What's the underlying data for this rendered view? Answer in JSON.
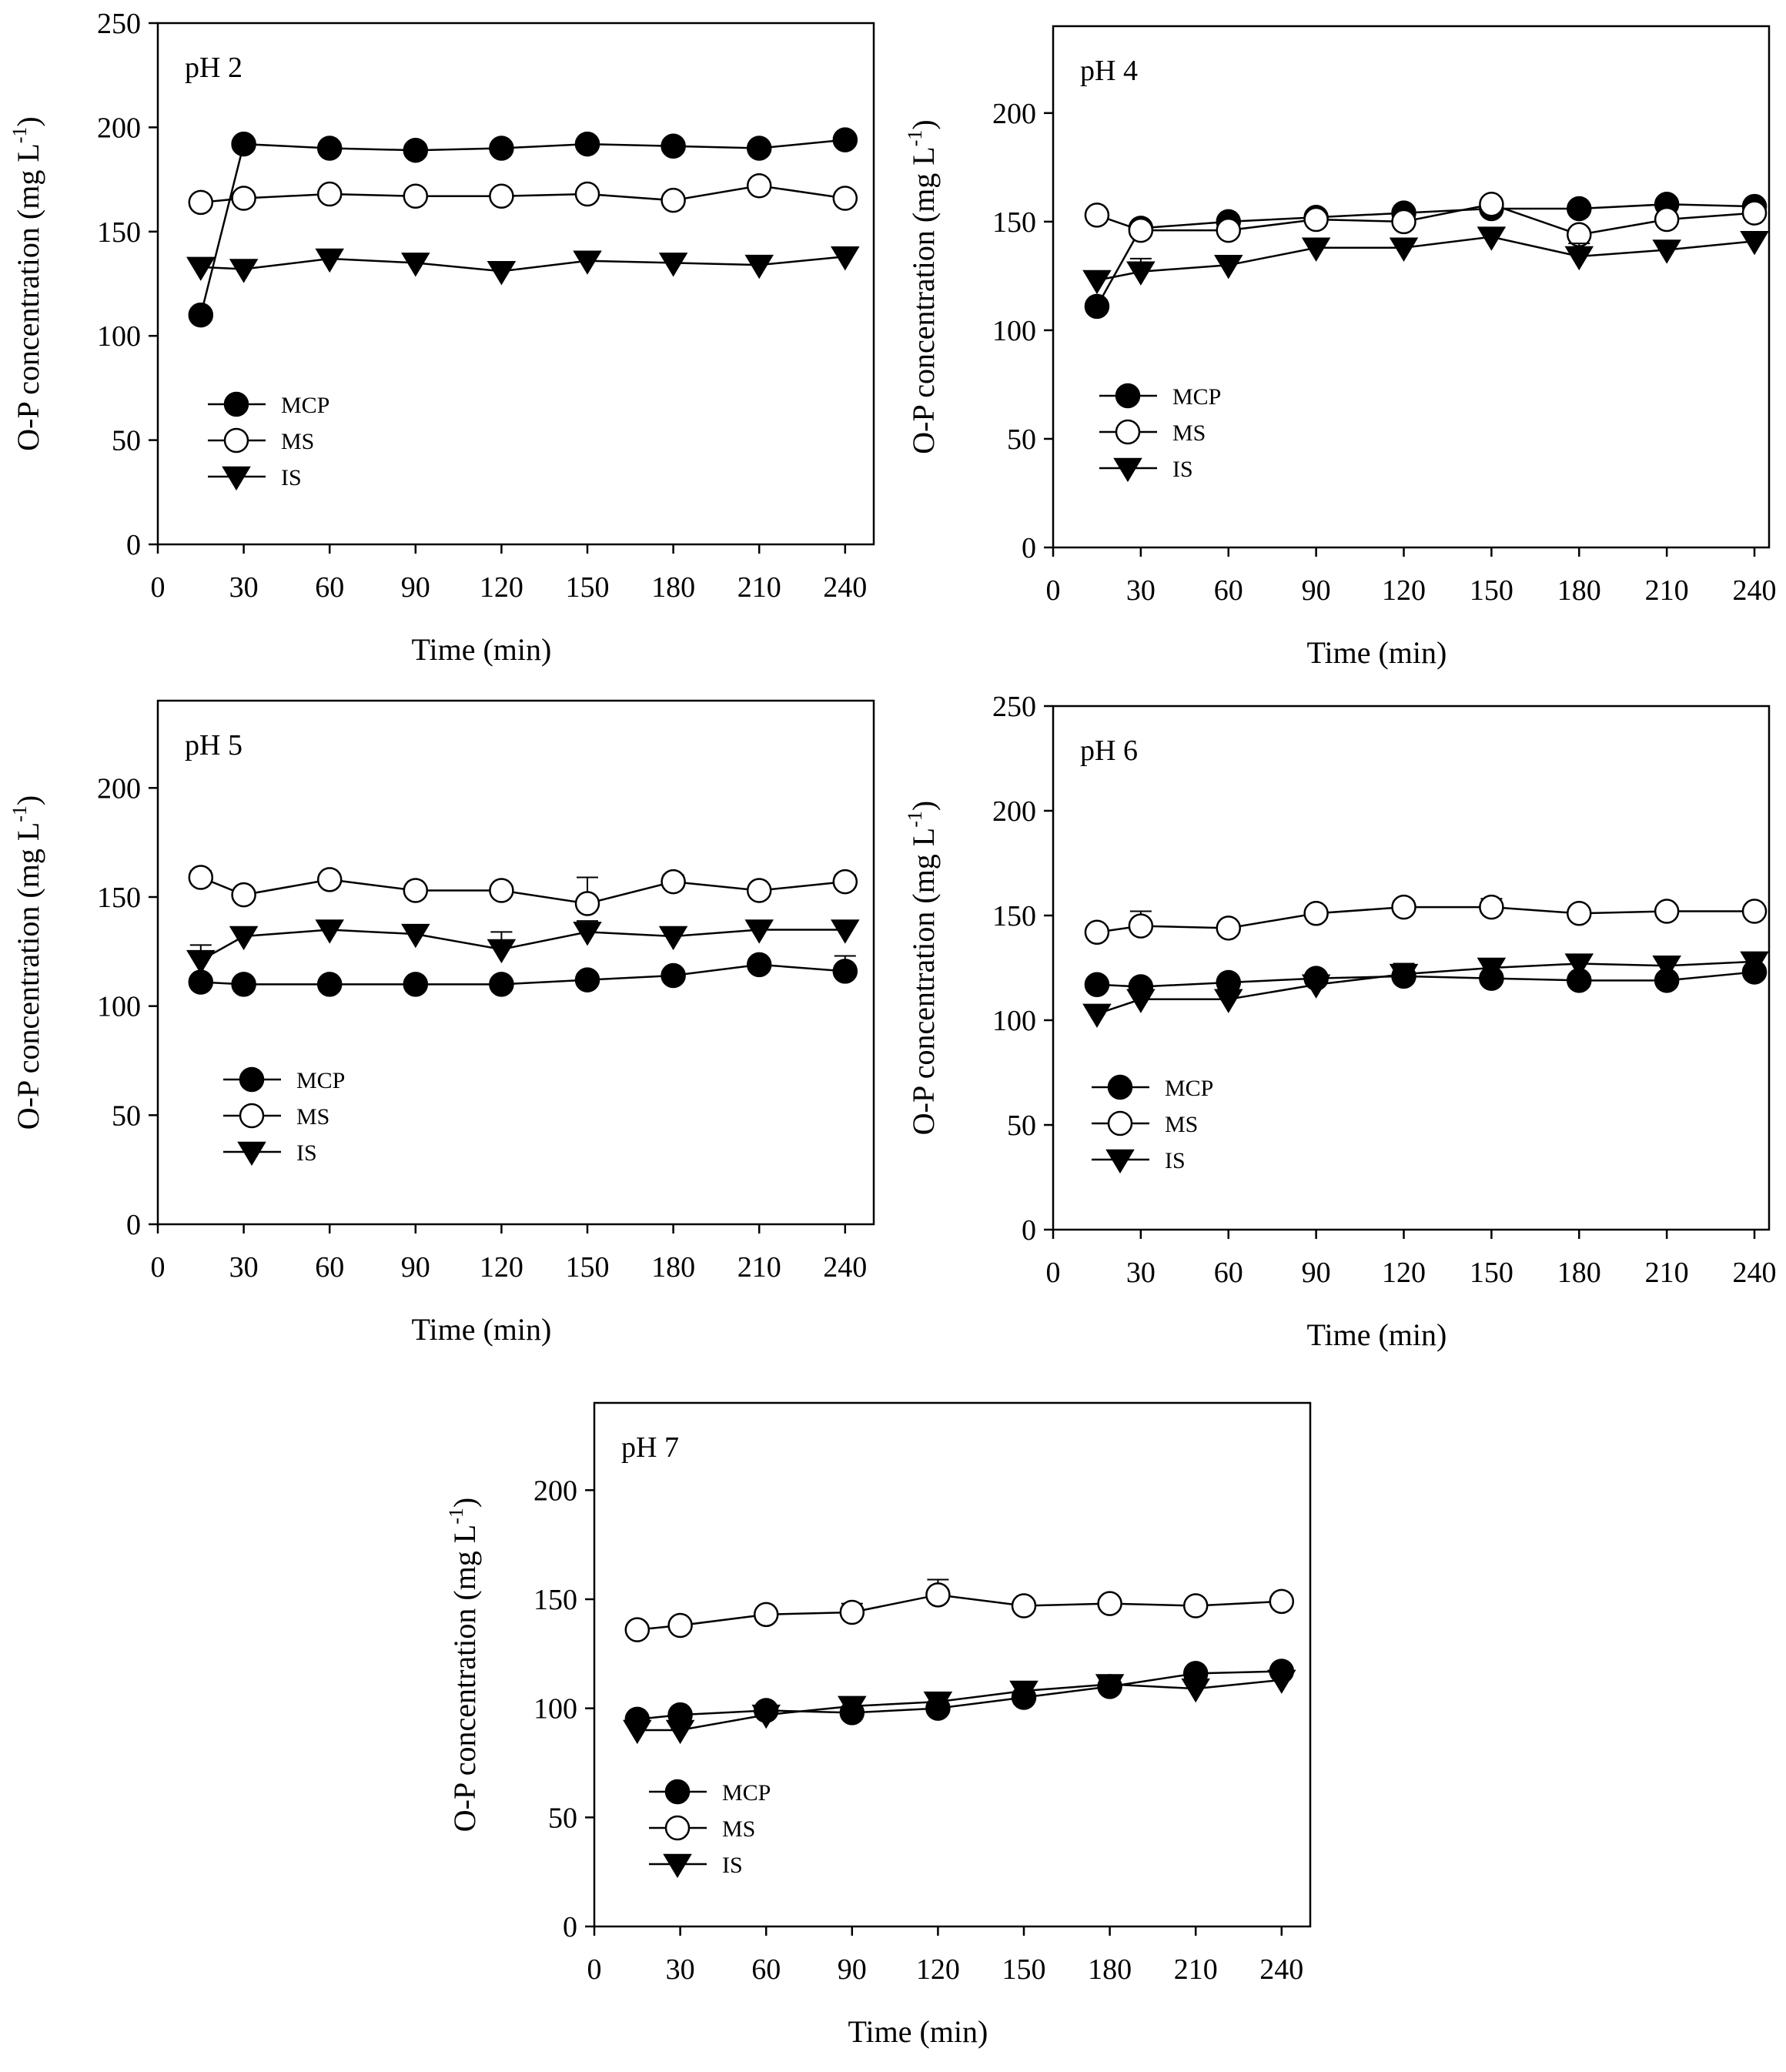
{
  "chart_data": [
    {
      "type": "line",
      "panel_label": "pH 2",
      "xlabel": "Time (min)",
      "ylabel": "O-P concentration (mg L-1)",
      "ylabel_main": "O-P concentration (mg L",
      "ylabel_sup": "-1",
      "ylabel_close": ")",
      "xlim": [
        0,
        250
      ],
      "ylim": [
        0,
        250
      ],
      "xticks": [
        0,
        30,
        60,
        90,
        120,
        150,
        180,
        210,
        240
      ],
      "yticks": [
        0,
        50,
        100,
        150,
        200,
        250
      ],
      "x": [
        15,
        30,
        60,
        90,
        120,
        150,
        180,
        210,
        240
      ],
      "series": [
        {
          "name": "MCP",
          "marker": "filled-circle",
          "values": [
            110,
            192,
            190,
            189,
            190,
            192,
            191,
            190,
            194
          ],
          "errors": [
            0,
            0,
            0,
            0,
            0,
            0,
            0,
            0,
            0
          ]
        },
        {
          "name": "MS",
          "marker": "open-circle",
          "values": [
            164,
            166,
            168,
            167,
            167,
            168,
            165,
            172,
            166
          ],
          "errors": [
            0,
            0,
            0,
            0,
            0,
            0,
            0,
            0,
            0
          ]
        },
        {
          "name": "IS",
          "marker": "filled-triangle-down",
          "values": [
            133,
            132,
            137,
            135,
            131,
            136,
            135,
            134,
            138
          ],
          "errors": [
            0,
            0,
            0,
            0,
            0,
            0,
            0,
            0,
            4
          ]
        }
      ]
    },
    {
      "type": "line",
      "panel_label": "pH 4",
      "xlabel": "Time (min)",
      "ylabel": "O-P concentration (mg L-1)",
      "ylabel_main": "O-P concentration (mg L",
      "ylabel_sup": "-1",
      "ylabel_close": ")",
      "xlim": [
        0,
        245
      ],
      "ylim": [
        0,
        240
      ],
      "xticks": [
        0,
        30,
        60,
        90,
        120,
        150,
        180,
        210,
        240
      ],
      "yticks": [
        0,
        50,
        100,
        150,
        200
      ],
      "x": [
        15,
        30,
        60,
        90,
        120,
        150,
        180,
        210,
        240
      ],
      "series": [
        {
          "name": "MCP",
          "marker": "filled-circle",
          "values": [
            111,
            147,
            150,
            152,
            154,
            156,
            156,
            158,
            157
          ],
          "errors": [
            0,
            0,
            0,
            0,
            0,
            0,
            0,
            0,
            0
          ]
        },
        {
          "name": "MS",
          "marker": "open-circle",
          "values": [
            153,
            146,
            146,
            151,
            150,
            158,
            144,
            151,
            154
          ],
          "errors": [
            0,
            0,
            0,
            0,
            0,
            0,
            0,
            0,
            0
          ]
        },
        {
          "name": "IS",
          "marker": "filled-triangle-down",
          "values": [
            123,
            127,
            130,
            138,
            138,
            143,
            134,
            137,
            141
          ],
          "errors": [
            0,
            6,
            4,
            0,
            0,
            0,
            6,
            0,
            0
          ]
        }
      ]
    },
    {
      "type": "line",
      "panel_label": "pH 5",
      "xlabel": "Time (min)",
      "ylabel": "O-P concentration (mg L-1)",
      "ylabel_main": "O-P concentration (mg L",
      "ylabel_sup": "-1",
      "ylabel_close": ")",
      "xlim": [
        0,
        250
      ],
      "ylim": [
        0,
        240
      ],
      "xticks": [
        0,
        30,
        60,
        90,
        120,
        150,
        180,
        210,
        240
      ],
      "yticks": [
        0,
        50,
        100,
        150,
        200
      ],
      "x": [
        15,
        30,
        60,
        90,
        120,
        150,
        180,
        210,
        240
      ],
      "series": [
        {
          "name": "MCP",
          "marker": "filled-circle",
          "values": [
            111,
            110,
            110,
            110,
            110,
            112,
            114,
            119,
            116
          ],
          "errors": [
            0,
            0,
            0,
            0,
            0,
            0,
            0,
            0,
            7
          ]
        },
        {
          "name": "MS",
          "marker": "open-circle",
          "values": [
            159,
            151,
            158,
            153,
            153,
            147,
            157,
            153,
            157
          ],
          "errors": [
            3,
            0,
            0,
            0,
            0,
            12,
            3,
            0,
            3
          ]
        },
        {
          "name": "IS",
          "marker": "filled-triangle-down",
          "values": [
            121,
            132,
            135,
            133,
            126,
            134,
            132,
            135,
            135
          ],
          "errors": [
            7,
            3,
            0,
            0,
            8,
            5,
            0,
            0,
            0
          ]
        }
      ]
    },
    {
      "type": "line",
      "panel_label": "pH 6",
      "xlabel": "Time (min)",
      "ylabel": "O-P concentration (mg L-1)",
      "ylabel_main": "O-P concentration (mg L",
      "ylabel_sup": "-1",
      "ylabel_close": ")",
      "xlim": [
        0,
        245
      ],
      "ylim": [
        0,
        250
      ],
      "xticks": [
        0,
        30,
        60,
        90,
        120,
        150,
        180,
        210,
        240
      ],
      "yticks": [
        0,
        50,
        100,
        150,
        200,
        250
      ],
      "x": [
        15,
        30,
        60,
        90,
        120,
        150,
        180,
        210,
        240
      ],
      "series": [
        {
          "name": "MCP",
          "marker": "filled-circle",
          "values": [
            117,
            116,
            118,
            120,
            121,
            120,
            119,
            119,
            123
          ],
          "errors": [
            0,
            0,
            0,
            0,
            0,
            0,
            0,
            0,
            0
          ]
        },
        {
          "name": "MS",
          "marker": "open-circle",
          "values": [
            142,
            145,
            144,
            151,
            154,
            154,
            151,
            152,
            152
          ],
          "errors": [
            0,
            7,
            0,
            0,
            3,
            4,
            0,
            0,
            0
          ]
        },
        {
          "name": "IS",
          "marker": "filled-triangle-down",
          "values": [
            103,
            110,
            110,
            117,
            122,
            125,
            127,
            126,
            128
          ],
          "errors": [
            0,
            0,
            0,
            0,
            5,
            0,
            0,
            0,
            0
          ]
        }
      ]
    },
    {
      "type": "line",
      "panel_label": "pH 7",
      "xlabel": "Time (min)",
      "ylabel": "O-P concentration (mg L-1)",
      "ylabel_main": "O-P concentration (mg L",
      "ylabel_sup": "-1",
      "ylabel_close": ")",
      "xlim": [
        0,
        250
      ],
      "ylim": [
        0,
        240
      ],
      "xticks": [
        0,
        30,
        60,
        90,
        120,
        150,
        180,
        210,
        240
      ],
      "yticks": [
        0,
        50,
        100,
        150,
        200
      ],
      "x": [
        15,
        30,
        60,
        90,
        120,
        150,
        180,
        210,
        240
      ],
      "series": [
        {
          "name": "MCP",
          "marker": "filled-circle",
          "values": [
            95,
            97,
            99,
            98,
            100,
            105,
            110,
            116,
            117
          ],
          "errors": [
            0,
            0,
            0,
            0,
            0,
            0,
            0,
            0,
            0
          ]
        },
        {
          "name": "MS",
          "marker": "open-circle",
          "values": [
            136,
            138,
            143,
            144,
            152,
            147,
            148,
            147,
            149
          ],
          "errors": [
            0,
            0,
            0,
            4,
            7,
            0,
            0,
            0,
            0
          ]
        },
        {
          "name": "IS",
          "marker": "filled-triangle-down",
          "values": [
            90,
            90,
            97,
            101,
            103,
            108,
            111,
            109,
            113
          ],
          "errors": [
            0,
            0,
            0,
            0,
            0,
            0,
            0,
            4,
            0
          ]
        }
      ]
    }
  ]
}
